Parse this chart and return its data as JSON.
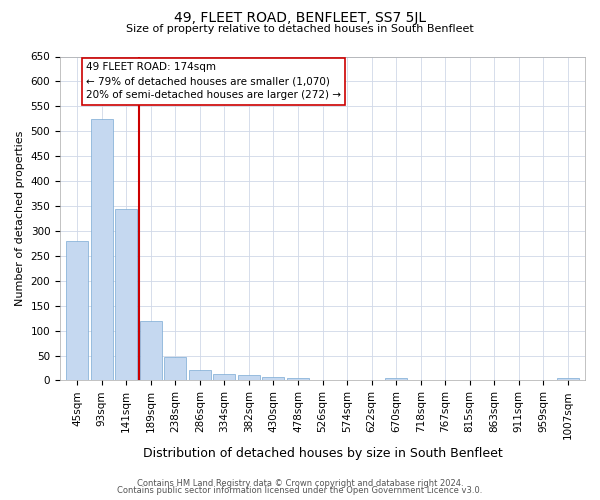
{
  "title": "49, FLEET ROAD, BENFLEET, SS7 5JL",
  "subtitle": "Size of property relative to detached houses in South Benfleet",
  "xlabel": "Distribution of detached houses by size in South Benfleet",
  "ylabel": "Number of detached properties",
  "categories": [
    "45sqm",
    "93sqm",
    "141sqm",
    "189sqm",
    "238sqm",
    "286sqm",
    "334sqm",
    "382sqm",
    "430sqm",
    "478sqm",
    "526sqm",
    "574sqm",
    "622sqm",
    "670sqm",
    "718sqm",
    "767sqm",
    "815sqm",
    "863sqm",
    "911sqm",
    "959sqm",
    "1007sqm"
  ],
  "values": [
    280,
    525,
    345,
    120,
    47,
    20,
    12,
    10,
    7,
    5,
    0,
    0,
    0,
    5,
    0,
    0,
    0,
    0,
    0,
    0,
    5
  ],
  "bar_color": "#c5d8f0",
  "bar_edge_color": "#7baad4",
  "redline_x": 2.5,
  "annotation_line1": "49 FLEET ROAD: 174sqm",
  "annotation_line2": "← 79% of detached houses are smaller (1,070)",
  "annotation_line3": "20% of semi-detached houses are larger (272) →",
  "annotation_box_color": "#ffffff",
  "annotation_box_edge_color": "#cc0000",
  "redline_color": "#cc0000",
  "ylim": [
    0,
    650
  ],
  "yticks": [
    0,
    50,
    100,
    150,
    200,
    250,
    300,
    350,
    400,
    450,
    500,
    550,
    600,
    650
  ],
  "footer_line1": "Contains HM Land Registry data © Crown copyright and database right 2024.",
  "footer_line2": "Contains public sector information licensed under the Open Government Licence v3.0.",
  "background_color": "#ffffff",
  "grid_color": "#d0d8e8",
  "title_fontsize": 10,
  "subtitle_fontsize": 8,
  "ylabel_fontsize": 8,
  "xlabel_fontsize": 9,
  "tick_fontsize": 7.5,
  "annotation_fontsize": 7.5,
  "footer_fontsize": 6
}
